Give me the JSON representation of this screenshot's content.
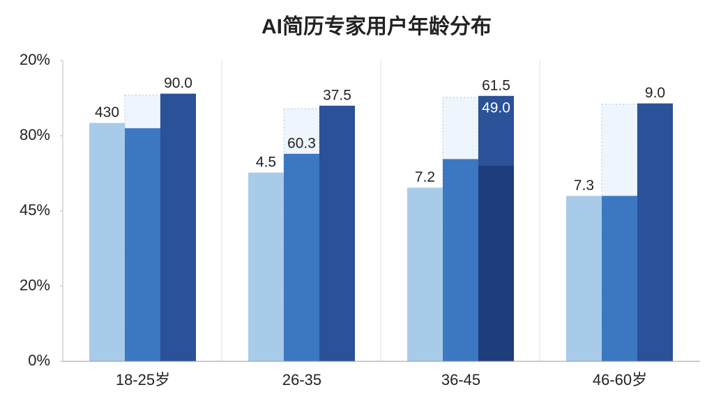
{
  "chart_data": {
    "type": "bar",
    "title": "AI简历专家用户年龄分布",
    "categories": [
      "18-25岁",
      "26-35",
      "36-45",
      "46-60岁"
    ],
    "ylim": [
      0,
      4
    ],
    "yticks": [
      {
        "value": 0,
        "label": "0%"
      },
      {
        "value": 1,
        "label": "20%"
      },
      {
        "value": 2,
        "label": "45%"
      },
      {
        "value": 3,
        "label": "80%"
      },
      {
        "value": 4,
        "label": "20%"
      }
    ],
    "series": [
      {
        "color": "#a9cbea",
        "values": [
          3.17,
          2.51,
          2.31,
          2.2
        ],
        "value_labels": [
          "430",
          "4.5",
          "7.2",
          "7.3"
        ]
      },
      {
        "color": "#eef5fc",
        "values": [
          3.54,
          3.36,
          3.51,
          3.42
        ]
      },
      {
        "color": "#3b78c1",
        "values": [
          3.1,
          2.76,
          2.69,
          2.2
        ],
        "value_labels": [
          null,
          "60.3",
          null,
          null
        ]
      },
      {
        "color": "#2b5198",
        "values": [
          3.56,
          3.4,
          3.53,
          3.43
        ],
        "value_labels": [
          "90.0",
          "37.5",
          "61.5",
          "9.0"
        ]
      },
      {
        "color": "#1f3c7c",
        "values": [
          null,
          null,
          2.6,
          null
        ],
        "value_labels": [
          null,
          null,
          "49.0",
          null
        ]
      }
    ]
  }
}
